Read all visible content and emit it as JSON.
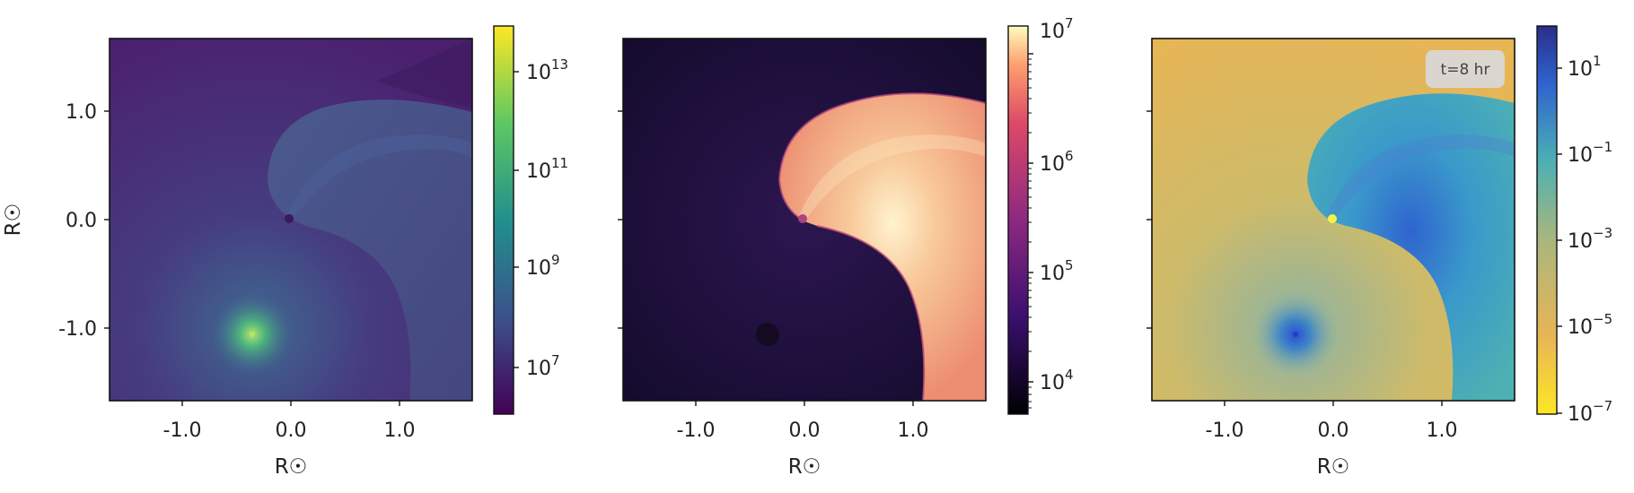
{
  "chart_data": [
    {
      "type": "heatmap",
      "title": "",
      "xlabel": "R☉",
      "ylabel": "R☉",
      "xlim": [
        -1.67,
        1.67
      ],
      "ylim": [
        -1.67,
        1.67
      ],
      "xticks": [
        "-1.0",
        "0.0",
        "1.0"
      ],
      "yticks": [
        "-1.0",
        "0.0",
        "1.0"
      ],
      "colorbar": {
        "scale": "log",
        "range": [
          1000000.0,
          100000000000000.0
        ],
        "ticks": [
          [
            "10",
            "7"
          ],
          [
            "10",
            "9"
          ],
          [
            "10",
            "11"
          ],
          [
            "10",
            "13"
          ]
        ],
        "colormap": "viridis"
      },
      "features": [
        {
          "kind": "point-source",
          "x": -0.35,
          "y": -1.05
        },
        {
          "kind": "point-source",
          "x": 0.0,
          "y": 0.0
        }
      ]
    },
    {
      "type": "heatmap",
      "title": "",
      "xlabel": "R☉",
      "ylabel": "",
      "xlim": [
        -1.67,
        1.67
      ],
      "ylim": [
        -1.67,
        1.67
      ],
      "xticks": [
        "-1.0",
        "0.0",
        "1.0"
      ],
      "yticks": [],
      "colorbar": {
        "scale": "log",
        "range": [
          5000.0,
          10000000.0
        ],
        "ticks": [
          [
            "10",
            "4"
          ],
          [
            "10",
            "5"
          ],
          [
            "10",
            "6"
          ],
          [
            "10",
            "7"
          ]
        ],
        "colormap": "magma"
      },
      "features": [
        {
          "kind": "point-source",
          "x": -0.35,
          "y": -1.05
        },
        {
          "kind": "point-source",
          "x": 0.0,
          "y": 0.0
        }
      ]
    },
    {
      "type": "heatmap",
      "title": "",
      "xlabel": "R☉",
      "ylabel": "",
      "xlim": [
        -1.67,
        1.67
      ],
      "ylim": [
        -1.67,
        1.67
      ],
      "xticks": [
        "-1.0",
        "0.0",
        "1.0"
      ],
      "yticks": [],
      "annotation": "t=8 hr",
      "colorbar": {
        "scale": "log",
        "range": [
          1e-07,
          100.0
        ],
        "ticks": [
          [
            "10",
            "−7"
          ],
          [
            "10",
            "−5"
          ],
          [
            "10",
            "−3"
          ],
          [
            "10",
            "−1"
          ],
          [
            "10",
            "1"
          ]
        ],
        "colormap": "cividis-blue reversed"
      },
      "features": [
        {
          "kind": "point-source",
          "x": -0.35,
          "y": -1.05
        },
        {
          "kind": "point-source",
          "x": 0.0,
          "y": 0.0
        }
      ]
    }
  ],
  "colors": {
    "p1_bg": "#4a2a73",
    "p1_wind": "#46508a",
    "p1_star": "#6fc86a",
    "p2_bg": "#1a0f35",
    "p2_wind": "#f4b184",
    "p2_hot": "#fde7bf",
    "p3_bg": "#e0b556",
    "p3_wind": "#3ba7c7",
    "p3_star": "#2a4fd3"
  }
}
